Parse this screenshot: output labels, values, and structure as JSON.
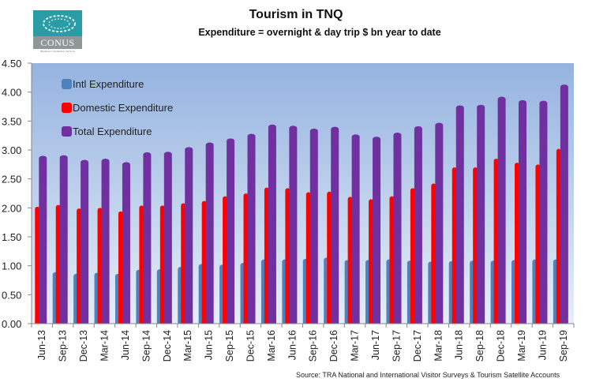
{
  "logo": {
    "name": "CONUS",
    "tagline": "Business Consultancy Services"
  },
  "chart_data": {
    "type": "bar",
    "title": "Tourism in TNQ",
    "subtitle": "Expenditure = overnight & day trip $ bn year to date",
    "xlabel": "",
    "ylabel": "",
    "ylim": [
      0,
      4.5
    ],
    "yticks": [
      "0.00",
      "0.50",
      "1.00",
      "1.50",
      "2.00",
      "2.50",
      "3.00",
      "3.50",
      "4.00",
      "4.50"
    ],
    "ytick_values": [
      0,
      0.5,
      1,
      1.5,
      2,
      2.5,
      3,
      3.5,
      4,
      4.5
    ],
    "grid": false,
    "legend_position": "top-left",
    "categories": [
      "Jun-13",
      "Sep-13",
      "Dec-13",
      "Mar-14",
      "Jun-14",
      "Sep-14",
      "Dec-14",
      "Mar-15",
      "Jun-15",
      "Sep-15",
      "Dec-15",
      "Mar-16",
      "Jun-16",
      "Sep-16",
      "Dec-16",
      "Mar-17",
      "Jun-17",
      "Sep-17",
      "Dec-17",
      "Mar-18",
      "Jun-18",
      "Sep-18",
      "Dec-18",
      "Mar-19",
      "Jun-19",
      "Sep-19"
    ],
    "series": [
      {
        "name": "Intl Expenditure",
        "color": "#4f81bd",
        "values": [
          0.0,
          0.89,
          0.86,
          0.88,
          0.86,
          0.93,
          0.94,
          0.98,
          1.03,
          1.02,
          1.05,
          1.11,
          1.11,
          1.12,
          1.14,
          1.1,
          1.1,
          1.11,
          1.09,
          1.07,
          1.08,
          1.09,
          1.09,
          1.1,
          1.11,
          1.11
        ]
      },
      {
        "name": "Domestic Expenditure",
        "color": "#ff0000",
        "values": [
          2.02,
          2.05,
          1.99,
          2.0,
          1.94,
          2.04,
          2.04,
          2.08,
          2.12,
          2.2,
          2.25,
          2.35,
          2.34,
          2.27,
          2.28,
          2.19,
          2.15,
          2.2,
          2.34,
          2.42,
          2.7,
          2.7,
          2.85,
          2.78,
          2.75,
          3.02
        ]
      },
      {
        "name": "Total Expenditure",
        "color": "#7030a0",
        "values": [
          2.9,
          2.91,
          2.83,
          2.85,
          2.79,
          2.96,
          2.97,
          3.05,
          3.13,
          3.2,
          3.28,
          3.44,
          3.42,
          3.37,
          3.4,
          3.27,
          3.23,
          3.3,
          3.41,
          3.47,
          3.77,
          3.78,
          3.92,
          3.86,
          3.85,
          4.13
        ]
      }
    ],
    "source": "Source:  TRA National and International Visitor Surveys & Tourism Satellite Accounts"
  }
}
